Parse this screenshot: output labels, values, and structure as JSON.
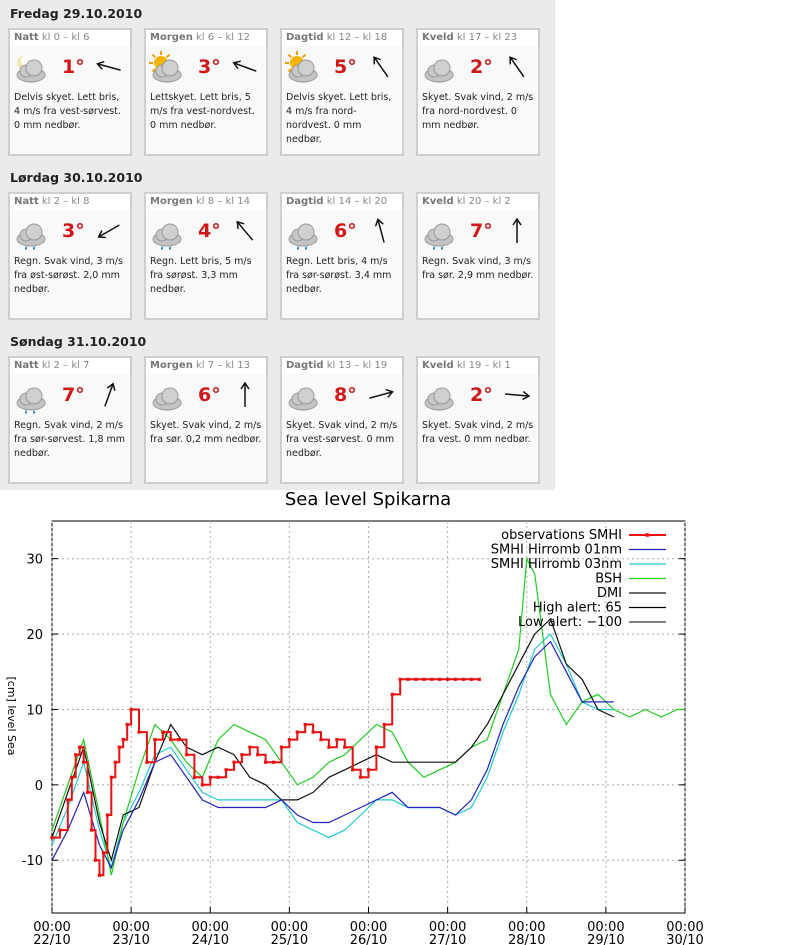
{
  "forecast": {
    "days": [
      {
        "title": "Fredag 29.10.2010",
        "periods": [
          {
            "name": "Natt",
            "time": "kl 0 – kl 6",
            "temp": "1°",
            "icon": "partly-cloudy-moon-icon",
            "wind_deg": -75,
            "desc": "Delvis skyet. Lett bris, 4 m/s fra vest-sørvest. 0 mm nedbør."
          },
          {
            "name": "Morgen",
            "time": "kl 6 – kl 12",
            "temp": "3°",
            "icon": "partly-cloudy-sun-icon",
            "wind_deg": -70,
            "desc": "Lettskyet. Lett bris, 5 m/s fra vest-nordvest. 0 mm nedbør."
          },
          {
            "name": "Dagtid",
            "time": "kl 12 – kl 18",
            "temp": "5°",
            "icon": "partly-cloudy-sun-icon",
            "wind_deg": -35,
            "desc": "Delvis skyet. Lett bris, 4 m/s fra nord-nordvest. 0 mm nedbør."
          },
          {
            "name": "Kveld",
            "time": "kl 17 – kl 23",
            "temp": "2°",
            "icon": "cloud-icon",
            "wind_deg": -35,
            "desc": "Skyet. Svak vind, 2 m/s fra nord-nordvest. 0 mm nedbør."
          }
        ]
      },
      {
        "title": "Lørdag 30.10.2010",
        "periods": [
          {
            "name": "Natt",
            "time": "kl 2 – kl 8",
            "temp": "3°",
            "icon": "rain-cloud-icon",
            "wind_deg": -120,
            "desc": "Regn. Svak vind, 3 m/s fra øst-sørøst. 2,0 mm nedbør."
          },
          {
            "name": "Morgen",
            "time": "kl 8 – kl 14",
            "temp": "4°",
            "icon": "rain-cloud-icon",
            "wind_deg": -40,
            "desc": "Regn. Lett bris, 5 m/s fra sørøst. 3,3 mm nedbør."
          },
          {
            "name": "Dagtid",
            "time": "kl 14 – kl 20",
            "temp": "6°",
            "icon": "rain-cloud-icon",
            "wind_deg": -15,
            "desc": "Regn. Lett bris, 4 m/s fra sør-sørøst. 3,4 mm nedbør."
          },
          {
            "name": "Kveld",
            "time": "kl 20 – kl 2",
            "temp": "7°",
            "icon": "rain-cloud-icon",
            "wind_deg": 0,
            "desc": "Regn. Svak vind, 3 m/s fra sør. 2,9 mm nedbør."
          }
        ]
      },
      {
        "title": "Søndag 31.10.2010",
        "periods": [
          {
            "name": "Natt",
            "time": "kl 2 – kl 7",
            "temp": "7°",
            "icon": "rain-cloud-icon",
            "wind_deg": 20,
            "desc": "Regn. Svak vind, 2 m/s fra sør-sørvest. 1,8 mm nedbør."
          },
          {
            "name": "Morgen",
            "time": "kl 7 – kl 13",
            "temp": "6°",
            "icon": "cloud-icon",
            "wind_deg": 0,
            "desc": "Skyet. Svak vind, 2 m/s fra sør. 0,2 mm nedbør."
          },
          {
            "name": "Dagtid",
            "time": "kl 13 – kl 19",
            "temp": "8°",
            "icon": "cloud-icon",
            "wind_deg": 75,
            "desc": "Skyet. Svak vind, 2 m/s fra vest-sørvest. 0 mm nedbør."
          },
          {
            "name": "Kveld",
            "time": "kl 19 – kl 1",
            "temp": "2°",
            "icon": "cloud-icon",
            "wind_deg": 95,
            "desc": "Skyet. Svak vind, 2 m/s fra vest. 0 mm nedbør."
          }
        ]
      }
    ]
  },
  "chart_data": {
    "type": "line",
    "title": "Sea level Spikarna",
    "ylabel": "[cm] level Sea",
    "ylim": [
      -17,
      35
    ],
    "yticks": [
      -10,
      0,
      10,
      20,
      30
    ],
    "xlim": [
      0,
      8
    ],
    "xticks": [
      {
        "value": 0,
        "time": "00:00",
        "date": "22/10"
      },
      {
        "value": 1,
        "time": "00:00",
        "date": "23/10"
      },
      {
        "value": 2,
        "time": "00:00",
        "date": "24/10"
      },
      {
        "value": 3,
        "time": "00:00",
        "date": "25/10"
      },
      {
        "value": 4,
        "time": "00:00",
        "date": "26/10"
      },
      {
        "value": 5,
        "time": "00:00",
        "date": "27/10"
      },
      {
        "value": 6,
        "time": "00:00",
        "date": "28/10"
      },
      {
        "value": 7,
        "time": "00:00",
        "date": "29/10"
      },
      {
        "value": 8,
        "time": "00:00",
        "date": "30/10"
      }
    ],
    "grid": true,
    "legend": "top-right",
    "series": [
      {
        "name": "observations SMHI",
        "color": "#e81010",
        "markers": true,
        "step": true,
        "x": [
          0,
          0.1,
          0.2,
          0.25,
          0.3,
          0.35,
          0.4,
          0.45,
          0.5,
          0.55,
          0.6,
          0.65,
          0.7,
          0.75,
          0.8,
          0.85,
          0.9,
          0.95,
          1.0,
          1.1,
          1.2,
          1.3,
          1.4,
          1.5,
          1.6,
          1.7,
          1.8,
          1.9,
          2.0,
          2.1,
          2.2,
          2.3,
          2.4,
          2.5,
          2.6,
          2.7,
          2.8,
          2.9,
          3.0,
          3.1,
          3.2,
          3.3,
          3.4,
          3.5,
          3.6,
          3.7,
          3.8,
          3.9,
          4.0,
          4.1,
          4.2,
          4.3,
          4.4,
          4.5,
          4.6,
          4.7,
          4.8,
          4.9,
          5.0,
          5.1,
          5.2,
          5.3,
          5.4
        ],
        "y": [
          -7,
          -6,
          -2,
          1,
          4,
          5,
          3,
          -1,
          -6,
          -10,
          -12,
          -9,
          -4,
          1,
          3,
          5,
          6,
          8,
          10,
          7,
          3,
          6,
          7,
          6,
          6,
          4,
          1,
          0,
          1,
          1,
          2,
          3,
          4,
          5,
          4,
          3,
          3,
          5,
          6,
          7,
          8,
          7,
          6,
          5,
          6,
          5,
          2,
          1,
          2,
          5,
          8,
          12,
          14,
          14,
          14,
          14,
          14,
          14,
          14,
          14,
          14,
          14,
          14
        ]
      },
      {
        "name": "SMHI Hirromb 01nm",
        "color": "#2222bb",
        "x": [
          0,
          0.2,
          0.4,
          0.6,
          0.75,
          0.9,
          1.1,
          1.3,
          1.5,
          1.7,
          1.9,
          2.1,
          2.3,
          2.5,
          2.7,
          2.9,
          3.1,
          3.3,
          3.5,
          3.7,
          3.9,
          4.1,
          4.3,
          4.5,
          4.7,
          4.9,
          5.1,
          5.3,
          5.5,
          5.7,
          5.9,
          6.1,
          6.3,
          6.5,
          6.7,
          6.9,
          7.1
        ],
        "y": [
          -10,
          -6,
          -1,
          -8,
          -11,
          -6,
          -2,
          3,
          4,
          1,
          -2,
          -3,
          -3,
          -3,
          -3,
          -2,
          -4,
          -5,
          -5,
          -4,
          -3,
          -2,
          -1,
          -3,
          -3,
          -3,
          -4,
          -2,
          2,
          8,
          13,
          17,
          19,
          15,
          11,
          11,
          11
        ]
      },
      {
        "name": "SMHI Hirromb 03nm",
        "color": "#22cccc",
        "x": [
          0,
          0.2,
          0.4,
          0.6,
          0.75,
          0.9,
          1.1,
          1.3,
          1.5,
          1.7,
          1.9,
          2.1,
          2.3,
          2.5,
          2.7,
          2.9,
          3.1,
          3.3,
          3.5,
          3.7,
          3.9,
          4.1,
          4.3,
          4.5,
          4.7,
          4.9,
          5.1,
          5.3,
          5.5,
          5.7,
          5.9,
          6.1,
          6.3,
          6.5,
          6.7,
          6.9,
          7.1
        ],
        "y": [
          -8,
          -3,
          3,
          -6,
          -11,
          -5,
          -1,
          4,
          5,
          2,
          -1,
          -2,
          -2,
          -2,
          -2,
          -2,
          -5,
          -6,
          -7,
          -6,
          -4,
          -2,
          -2,
          -3,
          -3,
          -3,
          -4,
          -3,
          1,
          7,
          12,
          18,
          20,
          16,
          11,
          10,
          10
        ]
      },
      {
        "name": "BSH",
        "color": "#22cc22",
        "x": [
          0,
          0.2,
          0.4,
          0.6,
          0.75,
          0.9,
          1.1,
          1.3,
          1.5,
          1.7,
          1.9,
          2.1,
          2.3,
          2.5,
          2.7,
          2.9,
          3.1,
          3.3,
          3.5,
          3.7,
          3.9,
          4.1,
          4.3,
          4.5,
          4.7,
          4.9,
          5.1,
          5.3,
          5.5,
          5.7,
          5.9,
          6.0,
          6.1,
          6.3,
          6.5,
          6.7,
          6.9,
          7.1,
          7.3,
          7.5,
          7.7,
          7.9,
          8.0
        ],
        "y": [
          -6,
          0,
          6,
          -4,
          -12,
          -5,
          2,
          8,
          6,
          3,
          1,
          6,
          8,
          7,
          6,
          3,
          0,
          1,
          3,
          4,
          6,
          8,
          7,
          3,
          1,
          2,
          3,
          5,
          6,
          12,
          18,
          30,
          28,
          12,
          8,
          11,
          12,
          10,
          9,
          10,
          9,
          10,
          10
        ]
      },
      {
        "name": "DMI",
        "color": "#111111",
        "x": [
          0,
          0.2,
          0.4,
          0.6,
          0.75,
          0.9,
          1.1,
          1.3,
          1.5,
          1.7,
          1.9,
          2.1,
          2.3,
          2.5,
          2.7,
          2.9,
          3.1,
          3.3,
          3.5,
          3.7,
          3.9,
          4.1,
          4.3,
          4.5,
          4.7,
          4.9,
          5.1,
          5.3,
          5.5,
          5.7,
          5.9,
          6.1,
          6.3,
          6.5,
          6.7,
          6.9,
          7.1
        ],
        "y": [
          -7,
          -1,
          5,
          -5,
          -10,
          -4,
          -3,
          3,
          8,
          5,
          4,
          5,
          4,
          1,
          0,
          -2,
          -2,
          -1,
          1,
          2,
          3,
          4,
          3,
          3,
          3,
          3,
          3,
          5,
          8,
          12,
          16,
          20,
          22,
          16,
          14,
          10,
          9
        ]
      }
    ],
    "thresholds": [
      {
        "name": "High alert: 65",
        "color": "#000000"
      },
      {
        "name": "Low alert: −100",
        "color": "#333333"
      }
    ]
  }
}
